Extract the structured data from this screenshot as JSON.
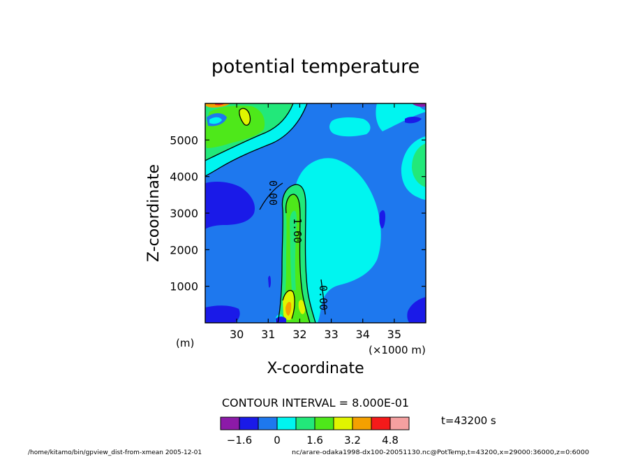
{
  "chart_data": {
    "type": "heatmap",
    "subtype": "filled-contour",
    "title": "potential temperature",
    "xlabel": "X-coordinate",
    "ylabel": "Z-coordinate",
    "x_unit_left": "(m)",
    "x_unit_right": "(×1000 m)",
    "xlim": [
      29,
      36
    ],
    "ylim": [
      0,
      6000
    ],
    "x_ticks": [
      30,
      31,
      32,
      33,
      34,
      35
    ],
    "y_ticks": [
      1000,
      2000,
      3000,
      4000,
      5000
    ],
    "contour_interval_text": "CONTOUR INTERVAL = 8.000E-01",
    "contour_labels": [
      "0.00",
      "1.60",
      "0.00"
    ],
    "time_label": "t=43200 s",
    "footer_left": "/home/kitamo/bin/gpview_dist-from-xmean  2005-12-01",
    "footer_right": "nc/arare-odaka1998-dx100-20051130.nc@PotTemp,t=43200,x=29000:36000,z=0:6000",
    "colorbar": {
      "levels": [
        -2.4,
        -1.6,
        -0.8,
        0,
        0.8,
        1.6,
        2.4,
        3.2,
        4.0,
        4.8,
        5.6
      ],
      "colors": [
        "#8c1aa8",
        "#1a1ae8",
        "#1e78ee",
        "#00f5f0",
        "#22e87a",
        "#4ee81a",
        "#e0f500",
        "#f5a000",
        "#f51a1a",
        "#f5a0a0"
      ],
      "tick_labels": [
        "−1.6",
        "0",
        "1.6",
        "3.2",
        "4.8"
      ]
    },
    "grid": false,
    "legend": "colorbar-bottom"
  }
}
